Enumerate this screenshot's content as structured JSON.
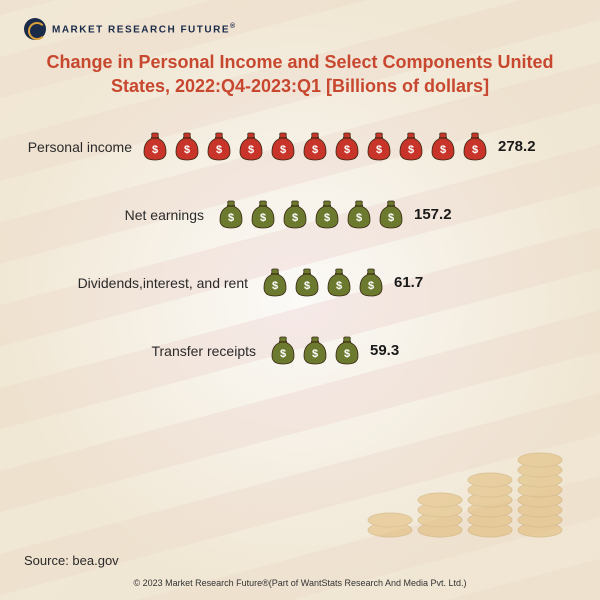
{
  "logo": {
    "text": "MARKET RESEARCH FUTURE",
    "r": "®"
  },
  "title": "Change in Personal Income and Select Components United States, 2022:Q4-2023:Q1 [Billions of dollars]",
  "chart": {
    "type": "pictogram-bar",
    "unit_value_approx": 25,
    "bag_colors": {
      "red": "#c8342a",
      "green": "#6b7a2e"
    },
    "bag_stroke": "#3a2a12",
    "label_fontsize": 14,
    "value_fontsize": 15,
    "rows": [
      {
        "label": "Personal income",
        "value": "278.2",
        "count": 11,
        "color": "red",
        "label_width": 108,
        "label_margin": 8
      },
      {
        "label": "Net earnings",
        "value": "157.2",
        "count": 6,
        "color": "green",
        "label_width": 180,
        "label_margin": 12
      },
      {
        "label": "Dividends,interest, and rent",
        "value": "61.7",
        "count": 4,
        "color": "green",
        "label_width": 224,
        "label_margin": 12
      },
      {
        "label": "Transfer receipts",
        "value": "59.3",
        "count": 3,
        "color": "green",
        "label_width": 232,
        "label_margin": 12
      }
    ]
  },
  "source": "Source: bea.gov",
  "copyright": "© 2023 Market Research Future®(Part of WantStats Research And Media Pvt. Ltd.)",
  "colors": {
    "title": "#c8472f",
    "text": "#2a2a2a",
    "coin": "#d9a03b",
    "coin_dark": "#b58226"
  }
}
